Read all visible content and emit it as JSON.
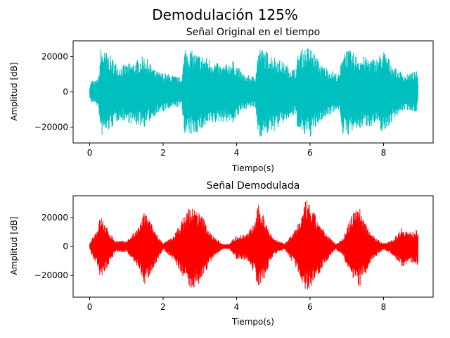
{
  "figure": {
    "suptitle": "Demodulación 125%"
  },
  "chart_data": [
    {
      "type": "line",
      "title": "Señal Original en el tiempo",
      "xlabel": "Tiempo(s)",
      "ylabel": "Amplitud [dB]",
      "xlim": [
        -0.45,
        9.35
      ],
      "ylim": [
        -29000,
        29000
      ],
      "xticks": [
        0,
        2,
        4,
        6,
        8
      ],
      "yticks": [
        -20000,
        0,
        20000
      ],
      "grid": false,
      "color": "#00bfbf",
      "series": [
        {
          "x_range": [
            0,
            8.94
          ],
          "envelope_t": [
            0,
            0.05,
            0.15,
            0.25,
            0.3,
            0.5,
            0.8,
            1.2,
            1.5,
            1.8,
            2.2,
            2.5,
            2.6,
            2.9,
            3.2,
            3.6,
            3.9,
            4.2,
            4.5,
            4.6,
            5.0,
            5.4,
            5.6,
            5.7,
            6.0,
            6.3,
            6.6,
            6.8,
            6.9,
            7.2,
            7.5,
            7.8,
            8.0,
            8.3,
            8.6,
            8.9,
            8.94
          ],
          "envelope_max": [
            3000,
            7000,
            6000,
            9000,
            25000,
            22000,
            15000,
            17000,
            21000,
            12000,
            10000,
            8000,
            26000,
            22000,
            20000,
            15000,
            18000,
            10000,
            9000,
            26000,
            21000,
            15000,
            13000,
            24000,
            26000,
            16000,
            12000,
            10000,
            26000,
            22000,
            20000,
            19000,
            24000,
            14000,
            10000,
            12000,
            6000
          ],
          "envelope_min": [
            -3000,
            -7000,
            -6000,
            -11000,
            -26000,
            -23000,
            -16000,
            -19000,
            -20000,
            -13000,
            -10000,
            -8000,
            -26000,
            -24000,
            -20000,
            -17000,
            -18000,
            -10000,
            -9000,
            -26000,
            -23000,
            -16000,
            -14000,
            -25000,
            -26000,
            -17000,
            -12000,
            -10000,
            -26000,
            -23000,
            -20000,
            -19000,
            -24000,
            -15000,
            -10000,
            -12000,
            -6000
          ]
        }
      ]
    },
    {
      "type": "line",
      "title": "Señal Demodulada",
      "xlabel": "Tiempo(s)",
      "ylabel": "Amplitud [dB]",
      "xlim": [
        -0.45,
        9.35
      ],
      "ylim": [
        -35000,
        35000
      ],
      "xticks": [
        0,
        2,
        4,
        6,
        8
      ],
      "yticks": [
        -20000,
        0,
        20000
      ],
      "grid": false,
      "color": "#ff0000",
      "series": [
        {
          "x_range": [
            0,
            8.94
          ],
          "envelope_t": [
            0,
            0.1,
            0.2,
            0.3,
            0.45,
            0.7,
            1.0,
            1.3,
            1.5,
            1.7,
            2.0,
            2.3,
            2.5,
            2.7,
            2.9,
            3.1,
            3.3,
            3.6,
            3.8,
            4.0,
            4.3,
            4.5,
            4.6,
            4.8,
            5.0,
            5.3,
            5.6,
            5.8,
            5.9,
            6.1,
            6.4,
            6.7,
            6.9,
            7.1,
            7.3,
            7.5,
            7.7,
            8.0,
            8.3,
            8.5,
            8.7,
            8.94
          ],
          "envelope_max": [
            2000,
            8000,
            12000,
            22000,
            14000,
            4000,
            4000,
            12000,
            25000,
            15000,
            2000,
            8000,
            18000,
            28000,
            26000,
            20000,
            9000,
            2000,
            2000,
            8000,
            9000,
            18000,
            30000,
            18000,
            6000,
            2000,
            12000,
            24000,
            33000,
            24000,
            10000,
            2000,
            6000,
            20000,
            30000,
            18000,
            8000,
            2000,
            6000,
            14000,
            10000,
            12000
          ],
          "envelope_min": [
            -2000,
            -10000,
            -14000,
            -25000,
            -16000,
            -4000,
            -4000,
            -14000,
            -28000,
            -17000,
            -2000,
            -10000,
            -20000,
            -30000,
            -28000,
            -22000,
            -10000,
            -2000,
            -2000,
            -9000,
            -10000,
            -20000,
            -30000,
            -20000,
            -6000,
            -2000,
            -14000,
            -26000,
            -32000,
            -26000,
            -12000,
            -2000,
            -7000,
            -22000,
            -30000,
            -20000,
            -9000,
            -2000,
            -7000,
            -15000,
            -11000,
            -13000
          ]
        }
      ]
    }
  ]
}
